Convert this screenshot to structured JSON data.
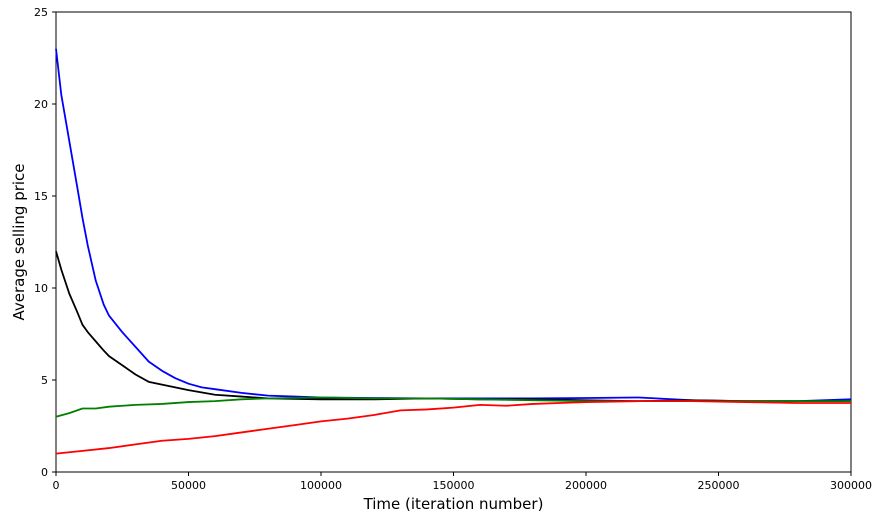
{
  "chart_data": {
    "type": "line",
    "xlabel": "Time (iteration number)",
    "ylabel": "Average selling price",
    "xlim": [
      0,
      300000
    ],
    "ylim": [
      0,
      25
    ],
    "x_ticks": [
      0,
      50000,
      100000,
      150000,
      200000,
      250000,
      300000
    ],
    "y_ticks": [
      0,
      5,
      10,
      15,
      20,
      25
    ],
    "grid": false,
    "legend": "none",
    "series": [
      {
        "color": "#0000ff",
        "x": [
          0,
          2000,
          5000,
          8000,
          10000,
          12000,
          15000,
          18000,
          20000,
          25000,
          30000,
          35000,
          40000,
          45000,
          50000,
          55000,
          60000,
          70000,
          80000,
          90000,
          100000,
          120000,
          140000,
          160000,
          180000,
          200000,
          220000,
          240000,
          260000,
          280000,
          300000
        ],
        "y": [
          23.0,
          20.5,
          18.0,
          15.5,
          13.8,
          12.3,
          10.4,
          9.1,
          8.5,
          7.6,
          6.8,
          6.0,
          5.5,
          5.1,
          4.8,
          4.6,
          4.5,
          4.3,
          4.15,
          4.1,
          4.05,
          4.02,
          4.0,
          4.0,
          4.0,
          4.02,
          4.05,
          3.9,
          3.85,
          3.85,
          3.95
        ]
      },
      {
        "color": "#000000",
        "x": [
          0,
          2000,
          5000,
          8000,
          10000,
          12000,
          15000,
          18000,
          20000,
          25000,
          30000,
          35000,
          40000,
          45000,
          50000,
          60000,
          70000,
          80000,
          100000,
          120000,
          140000,
          160000,
          180000,
          200000,
          220000,
          240000,
          260000,
          280000,
          300000
        ],
        "y": [
          12.0,
          11.0,
          9.7,
          8.7,
          8.0,
          7.6,
          7.1,
          6.6,
          6.3,
          5.8,
          5.3,
          4.9,
          4.75,
          4.6,
          4.45,
          4.2,
          4.1,
          4.0,
          3.95,
          3.95,
          4.0,
          3.95,
          3.95,
          3.9,
          3.85,
          3.9,
          3.85,
          3.85,
          3.85
        ]
      },
      {
        "color": "#008000",
        "x": [
          0,
          5000,
          10000,
          15000,
          20000,
          30000,
          40000,
          50000,
          60000,
          70000,
          80000,
          100000,
          120000,
          140000,
          160000,
          180000,
          200000,
          220000,
          240000,
          260000,
          280000,
          300000
        ],
        "y": [
          3.0,
          3.2,
          3.45,
          3.45,
          3.55,
          3.65,
          3.7,
          3.8,
          3.85,
          3.95,
          4.0,
          4.05,
          4.0,
          4.0,
          3.95,
          3.9,
          3.85,
          3.85,
          3.85,
          3.85,
          3.85,
          3.85
        ]
      },
      {
        "color": "#ff0000",
        "x": [
          0,
          10000,
          20000,
          30000,
          40000,
          50000,
          60000,
          70000,
          80000,
          90000,
          100000,
          110000,
          120000,
          130000,
          140000,
          150000,
          160000,
          170000,
          180000,
          190000,
          200000,
          220000,
          240000,
          260000,
          280000,
          300000
        ],
        "y": [
          1.0,
          1.15,
          1.3,
          1.5,
          1.7,
          1.8,
          1.95,
          2.15,
          2.35,
          2.55,
          2.75,
          2.9,
          3.1,
          3.35,
          3.4,
          3.5,
          3.65,
          3.6,
          3.7,
          3.75,
          3.8,
          3.85,
          3.85,
          3.8,
          3.75,
          3.75
        ]
      }
    ]
  }
}
